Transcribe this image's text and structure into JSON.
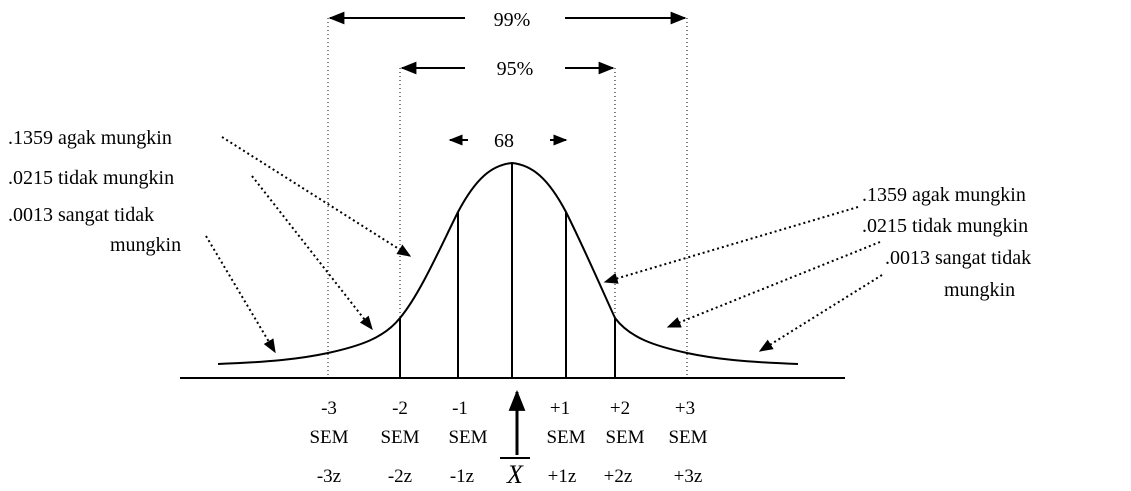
{
  "intervals": {
    "p99": "99%",
    "p95": "95%",
    "p68": "68"
  },
  "left_labels": [
    ".1359 agak mungkin",
    ".0215 tidak mungkin",
    ".0013 sangat tidak",
    "mungkin"
  ],
  "right_labels": [
    ".1359 agak mungkin",
    ".0215 tidak mungkin",
    ".0013 sangat tidak",
    "mungkin"
  ],
  "ticks": [
    {
      "top": "-3",
      "mid": "SEM",
      "z": "-3z"
    },
    {
      "top": "-2",
      "mid": "SEM",
      "z": "-2z"
    },
    {
      "top": "-1",
      "mid": "SEM",
      "z": "-1z"
    },
    {
      "top": "+1",
      "mid": "SEM",
      "z": "+1z"
    },
    {
      "top": "+2",
      "mid": "SEM",
      "z": "+2z"
    },
    {
      "top": "+3",
      "mid": "SEM",
      "z": "+3z"
    }
  ],
  "mean_symbol": "X",
  "colors": {
    "ink": "#000000",
    "background": "#ffffff"
  }
}
